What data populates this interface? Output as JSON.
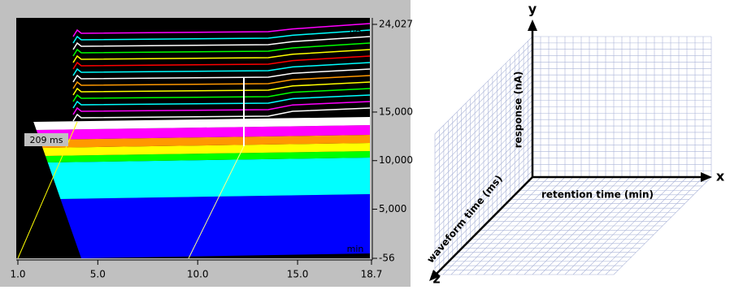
{
  "chart_data": {
    "type": "waterfall",
    "y_unit": "nA",
    "x_unit": "min",
    "annotation": "209 ms",
    "xlim": [
      1.0,
      18.7
    ],
    "xticks": [
      {
        "value": 1.0,
        "label": "1.0"
      },
      {
        "value": 5.0,
        "label": "5.0"
      },
      {
        "value": 10.0,
        "label": "10.0"
      },
      {
        "value": 15.0,
        "label": "15.0"
      },
      {
        "value": 18.7,
        "label": "18.7"
      }
    ],
    "ylim": [
      -56,
      24027
    ],
    "yticks": [
      -56,
      {
        "value": 5000,
        "label": "5,000"
      },
      {
        "value": 10000,
        "label": "10,000"
      },
      {
        "value": 15000,
        "label": "15,000"
      },
      {
        "value": 24027,
        "label": "24,027"
      }
    ]
  },
  "diagram": {
    "axes": {
      "y": "y",
      "x": "x",
      "z": "z"
    },
    "y_label": "response (nA)",
    "x_label": "retention time (min)",
    "z_label": "waveform time (ms)"
  }
}
